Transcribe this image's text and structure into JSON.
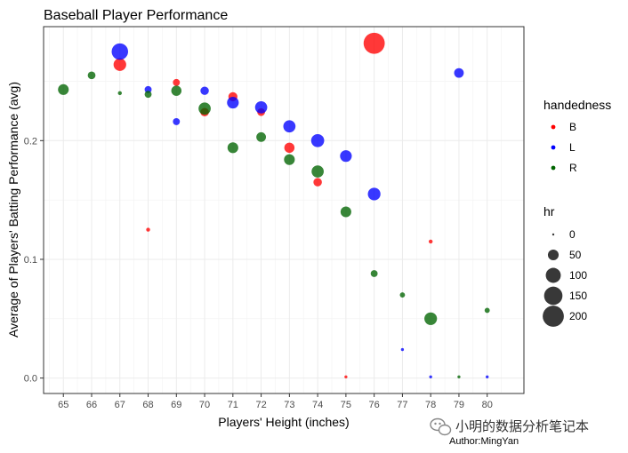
{
  "chart_data": {
    "type": "scatter",
    "title": "Baseball Player Performance",
    "xlabel": "Players' Height (inches)",
    "ylabel": "Average of Players' Batting Performance (avg)",
    "xlim": [
      64.3,
      81.3
    ],
    "ylim": [
      -0.013,
      0.296
    ],
    "x_ticks": [
      65,
      66,
      67,
      68,
      69,
      70,
      71,
      72,
      73,
      74,
      75,
      76,
      77,
      78,
      79,
      80
    ],
    "y_ticks": [
      0.0,
      0.1,
      0.2
    ],
    "y_tick_labels": [
      "0.0",
      "0.1",
      "0.2"
    ],
    "grid": true,
    "legend_placement": "right",
    "color_legend": {
      "title": "handedness",
      "entries": [
        {
          "label": "B",
          "color": "#ff0000"
        },
        {
          "label": "L",
          "color": "#0000ff"
        },
        {
          "label": "R",
          "color": "#006400"
        }
      ]
    },
    "size_legend": {
      "title": "hr",
      "entries": [
        0,
        50,
        100,
        150,
        200
      ],
      "entry_labels": [
        "0",
        "50",
        "100",
        "150",
        "200"
      ]
    },
    "series": [
      {
        "name": "B",
        "color": "#ff0000",
        "points": [
          {
            "x": 67,
            "y": 0.264,
            "hr": 70
          },
          {
            "x": 68,
            "y": 0.125,
            "hr": 5
          },
          {
            "x": 69,
            "y": 0.249,
            "hr": 20
          },
          {
            "x": 70,
            "y": 0.224,
            "hr": 30
          },
          {
            "x": 71,
            "y": 0.237,
            "hr": 35
          },
          {
            "x": 72,
            "y": 0.224,
            "hr": 25
          },
          {
            "x": 73,
            "y": 0.194,
            "hr": 45
          },
          {
            "x": 74,
            "y": 0.165,
            "hr": 30
          },
          {
            "x": 75,
            "y": 0.001,
            "hr": 2
          },
          {
            "x": 76,
            "y": 0.282,
            "hr": 200
          },
          {
            "x": 78,
            "y": 0.115,
            "hr": 5
          }
        ]
      },
      {
        "name": "L",
        "color": "#0000ff",
        "points": [
          {
            "x": 67,
            "y": 0.275,
            "hr": 120
          },
          {
            "x": 68,
            "y": 0.243,
            "hr": 20
          },
          {
            "x": 69,
            "y": 0.216,
            "hr": 20
          },
          {
            "x": 70,
            "y": 0.242,
            "hr": 30
          },
          {
            "x": 71,
            "y": 0.232,
            "hr": 60
          },
          {
            "x": 72,
            "y": 0.228,
            "hr": 65
          },
          {
            "x": 73,
            "y": 0.212,
            "hr": 65
          },
          {
            "x": 74,
            "y": 0.2,
            "hr": 75
          },
          {
            "x": 75,
            "y": 0.187,
            "hr": 60
          },
          {
            "x": 76,
            "y": 0.155,
            "hr": 70
          },
          {
            "x": 77,
            "y": 0.024,
            "hr": 2
          },
          {
            "x": 78,
            "y": 0.001,
            "hr": 2
          },
          {
            "x": 79,
            "y": 0.257,
            "hr": 40
          },
          {
            "x": 80,
            "y": 0.001,
            "hr": 2
          }
        ]
      },
      {
        "name": "R",
        "color": "#006400",
        "points": [
          {
            "x": 65,
            "y": 0.243,
            "hr": 50
          },
          {
            "x": 66,
            "y": 0.255,
            "hr": 25
          },
          {
            "x": 67,
            "y": 0.24,
            "hr": 5
          },
          {
            "x": 68,
            "y": 0.239,
            "hr": 20
          },
          {
            "x": 69,
            "y": 0.242,
            "hr": 45
          },
          {
            "x": 70,
            "y": 0.227,
            "hr": 65
          },
          {
            "x": 71,
            "y": 0.194,
            "hr": 50
          },
          {
            "x": 72,
            "y": 0.203,
            "hr": 40
          },
          {
            "x": 73,
            "y": 0.184,
            "hr": 50
          },
          {
            "x": 74,
            "y": 0.174,
            "hr": 65
          },
          {
            "x": 75,
            "y": 0.14,
            "hr": 50
          },
          {
            "x": 76,
            "y": 0.088,
            "hr": 20
          },
          {
            "x": 77,
            "y": 0.07,
            "hr": 10
          },
          {
            "x": 78,
            "y": 0.05,
            "hr": 70
          },
          {
            "x": 79,
            "y": 0.001,
            "hr": 2
          },
          {
            "x": 80,
            "y": 0.057,
            "hr": 10
          }
        ]
      }
    ]
  },
  "watermark": {
    "text": "小明的数据分析笔记本",
    "author": "Author:MingYan",
    "icon": "wechat-icon"
  }
}
